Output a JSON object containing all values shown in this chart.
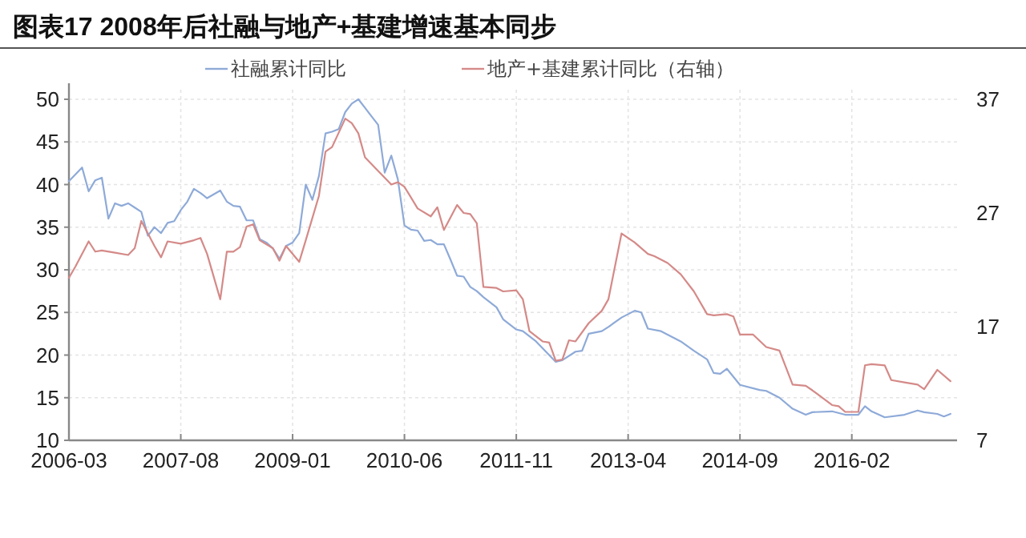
{
  "chart_data": {
    "type": "line",
    "title": "图表17   2008年后社融与地产+基建增速基本同步",
    "legend": "top",
    "grid": true,
    "xlim": [
      "2006-03",
      "2017-06"
    ],
    "xticks": [
      {
        "value": "2006-03",
        "label": "2006-03"
      },
      {
        "value": "2007-08",
        "label": "2007-08"
      },
      {
        "value": "2009-01",
        "label": "2009-01"
      },
      {
        "value": "2010-06",
        "label": "2010-06"
      },
      {
        "value": "2011-11",
        "label": "2011-11"
      },
      {
        "value": "2013-04",
        "label": "2013-04"
      },
      {
        "value": "2014-09",
        "label": "2014-09"
      },
      {
        "value": "2016-02",
        "label": "2016-02"
      }
    ],
    "ylim": [
      10,
      50
    ],
    "yticks": [
      10,
      15,
      20,
      25,
      30,
      35,
      40,
      45,
      50
    ],
    "y2lim": [
      7,
      37
    ],
    "y2ticks": [
      7,
      17,
      27,
      37
    ],
    "series": [
      {
        "name": "社融累计同比",
        "color": "#8eaad8",
        "x": [
          "2006-03",
          "2006-04",
          "2006-05",
          "2006-06",
          "2006-07",
          "2006-08",
          "2006-09",
          "2006-10",
          "2006-11",
          "2006-12",
          "2007-01",
          "2007-02",
          "2007-03",
          "2007-04",
          "2007-05",
          "2007-06",
          "2007-07",
          "2007-08",
          "2007-09",
          "2007-10",
          "2007-11",
          "2007-12",
          "2008-02",
          "2008-03",
          "2008-04",
          "2008-05",
          "2008-06",
          "2008-07",
          "2008-08",
          "2008-09",
          "2008-10",
          "2008-11",
          "2008-12",
          "2009-01",
          "2009-02",
          "2009-03",
          "2009-04",
          "2009-05",
          "2009-06",
          "2009-07",
          "2009-08",
          "2009-09",
          "2009-10",
          "2009-11",
          "2009-12",
          "2010-01",
          "2010-02",
          "2010-03",
          "2010-04",
          "2010-05",
          "2010-06",
          "2010-07",
          "2010-08",
          "2010-09",
          "2010-10",
          "2010-11",
          "2010-12",
          "2011-01",
          "2011-02",
          "2011-03",
          "2011-04",
          "2011-05",
          "2011-06",
          "2011-08",
          "2011-09",
          "2011-11",
          "2011-12",
          "2012-02",
          "2012-05",
          "2012-06",
          "2012-08",
          "2012-09",
          "2012-10",
          "2012-12",
          "2013-01",
          "2013-03",
          "2013-05",
          "2013-06",
          "2013-07",
          "2013-09",
          "2013-12",
          "2014-02",
          "2014-04",
          "2014-05",
          "2014-06",
          "2014-07",
          "2014-09",
          "2014-12",
          "2015-01",
          "2015-03",
          "2015-05",
          "2015-07",
          "2015-08",
          "2015-11",
          "2016-01",
          "2016-03",
          "2016-04",
          "2016-05",
          "2016-07",
          "2016-10",
          "2016-12",
          "2017-01",
          "2017-03",
          "2017-04",
          "2017-05"
        ],
        "values": [
          40.4,
          41.2,
          42.0,
          39.2,
          40.5,
          40.8,
          36.0,
          37.8,
          37.5,
          37.8,
          37.3,
          36.8,
          34.0,
          35.0,
          34.3,
          35.5,
          35.7,
          37.0,
          38.0,
          39.5,
          39.0,
          38.4,
          39.3,
          38.0,
          37.5,
          37.4,
          35.8,
          35.8,
          33.6,
          33.2,
          32.5,
          31.3,
          32.8,
          33.2,
          34.3,
          40.0,
          38.2,
          41.0,
          46.0,
          46.2,
          46.5,
          48.5,
          49.5,
          50.0,
          49.0,
          48.0,
          47.0,
          41.4,
          43.4,
          40.6,
          35.2,
          34.7,
          34.6,
          33.4,
          33.5,
          33.0,
          33.0,
          31.2,
          29.3,
          29.2,
          28.0,
          27.5,
          26.8,
          25.6,
          24.2,
          23.0,
          22.8,
          21.6,
          19.2,
          19.4,
          20.4,
          20.5,
          22.5,
          22.8,
          23.3,
          24.4,
          25.2,
          25.0,
          23.1,
          22.8,
          21.6,
          20.5,
          19.5,
          17.9,
          17.8,
          18.4,
          16.5,
          15.9,
          15.8,
          15.0,
          13.7,
          13.0,
          13.3,
          13.4,
          13.0,
          13.0,
          14.0,
          13.4,
          12.7,
          13.0,
          13.5,
          13.3,
          13.1,
          12.8,
          13.1
        ]
      },
      {
        "name": "地产+基建累计同比（右轴）",
        "color": "#d48a88",
        "axis": "y2",
        "x": [
          "2006-03",
          "2006-04",
          "2006-06",
          "2006-07",
          "2006-08",
          "2006-10",
          "2006-12",
          "2007-01",
          "2007-02",
          "2007-03",
          "2007-04",
          "2007-05",
          "2007-06",
          "2007-08",
          "2007-10",
          "2007-11",
          "2007-12",
          "2008-02",
          "2008-03",
          "2008-04",
          "2008-05",
          "2008-06",
          "2008-07",
          "2008-08",
          "2008-10",
          "2008-11",
          "2008-12",
          "2009-02",
          "2009-03",
          "2009-05",
          "2009-06",
          "2009-07",
          "2009-09",
          "2009-10",
          "2009-11",
          "2009-12",
          "2010-02",
          "2010-04",
          "2010-05",
          "2010-06",
          "2010-08",
          "2010-10",
          "2010-11",
          "2010-12",
          "2011-02",
          "2011-03",
          "2011-04",
          "2011-05",
          "2011-06",
          "2011-08",
          "2011-09",
          "2011-11",
          "2011-12",
          "2012-01",
          "2012-03",
          "2012-04",
          "2012-05",
          "2012-06",
          "2012-07",
          "2012-08",
          "2012-10",
          "2012-12",
          "2013-01",
          "2013-03",
          "2013-05",
          "2013-07",
          "2013-08",
          "2013-10",
          "2013-12",
          "2014-02",
          "2014-04",
          "2014-05",
          "2014-07",
          "2014-08",
          "2014-09",
          "2014-11",
          "2015-01",
          "2015-03",
          "2015-05",
          "2015-07",
          "2015-08",
          "2015-11",
          "2015-12",
          "2016-01",
          "2016-03",
          "2016-04",
          "2016-05",
          "2016-07",
          "2016-08",
          "2016-10",
          "2016-12",
          "2017-01",
          "2017-03",
          "2017-05"
        ],
        "values": [
          21.3,
          22.3,
          24.5,
          23.6,
          23.7,
          23.5,
          23.3,
          23.9,
          26.3,
          25.2,
          24.1,
          23.1,
          24.5,
          24.3,
          24.6,
          24.8,
          23.4,
          19.4,
          23.6,
          23.6,
          24.0,
          25.8,
          26.0,
          24.6,
          23.9,
          22.8,
          24.1,
          22.7,
          24.6,
          28.5,
          32.4,
          32.8,
          35.3,
          34.9,
          34.0,
          31.9,
          30.7,
          29.5,
          29.7,
          29.3,
          27.4,
          26.7,
          27.5,
          25.5,
          27.7,
          27.0,
          26.9,
          26.1,
          20.5,
          20.4,
          20.1,
          20.2,
          19.4,
          16.6,
          15.7,
          15.6,
          14.0,
          14.1,
          15.8,
          15.7,
          17.3,
          18.4,
          19.4,
          25.2,
          24.4,
          23.4,
          23.2,
          22.6,
          21.6,
          20.1,
          18.1,
          18.0,
          18.1,
          17.9,
          16.3,
          16.3,
          15.2,
          14.9,
          11.9,
          11.8,
          11.4,
          10.1,
          10.0,
          9.5,
          9.5,
          13.6,
          13.7,
          13.6,
          12.3,
          12.1,
          11.9,
          11.5,
          13.2,
          12.2
        ]
      }
    ]
  }
}
